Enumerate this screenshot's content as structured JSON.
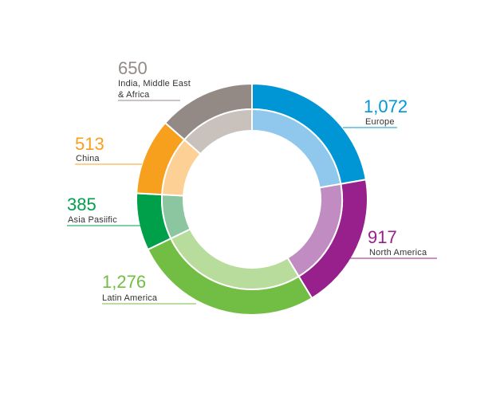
{
  "chart_data": {
    "type": "pie",
    "style": "donut",
    "slices": [
      {
        "label": "Europe",
        "value": 1072,
        "display": "1,072",
        "color": "#0096D6",
        "inner_color": "#8FC8EC"
      },
      {
        "label": "North America",
        "value": 917,
        "display": "917",
        "color": "#98208C",
        "inner_color": "#C18CC1"
      },
      {
        "label": "Latin America",
        "value": 1276,
        "display": "1,276",
        "color": "#72BE44",
        "inner_color": "#B8DC9C"
      },
      {
        "label": "Asia Pasiific",
        "value": 385,
        "display": "385",
        "color": "#00A04B",
        "inner_color": "#8BC6A1"
      },
      {
        "label": "China",
        "value": 513,
        "display": "513",
        "color": "#F7A01E",
        "inner_color": "#FDD095"
      },
      {
        "label": "India, Middle East & Africa",
        "label_lines": [
          "India, Middle East",
          "& Africa"
        ],
        "value": 650,
        "display": "650",
        "color": "#948A85",
        "inner_color": "#C8C1BC"
      }
    ]
  }
}
